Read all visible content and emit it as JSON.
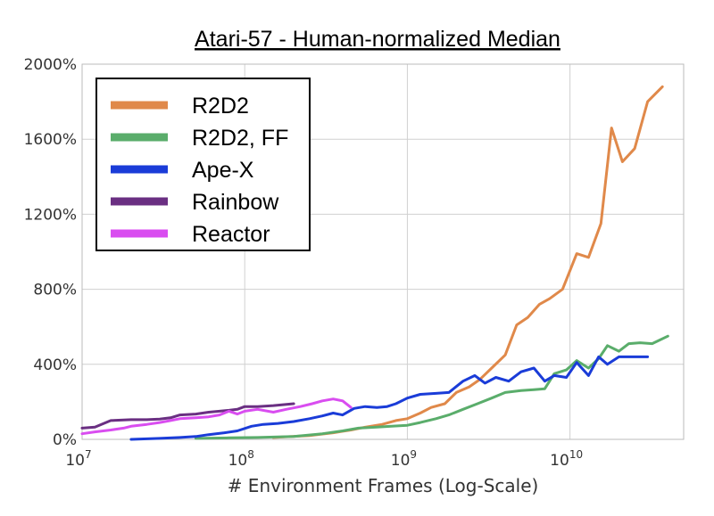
{
  "chart_data": {
    "type": "line",
    "title": "Atari-57 - Human-normalized Median",
    "xlabel": "# Environment Frames (Log-Scale)",
    "ylabel": "",
    "x_scale": "log",
    "xlim": [
      10000000,
      50000000000
    ],
    "ylim": [
      0,
      2000
    ],
    "grid": true,
    "legend_position": "top-left",
    "y_ticks": [
      {
        "value": 0,
        "label": "0%"
      },
      {
        "value": 400,
        "label": "400%"
      },
      {
        "value": 800,
        "label": "800%"
      },
      {
        "value": 1200,
        "label": "1200%"
      },
      {
        "value": 1600,
        "label": "1600%"
      },
      {
        "value": 2000,
        "label": "2000%"
      }
    ],
    "x_ticks": [
      {
        "value": 10000000,
        "base": "10",
        "exp": "7"
      },
      {
        "value": 100000000,
        "base": "10",
        "exp": "8"
      },
      {
        "value": 1000000000,
        "base": "10",
        "exp": "9"
      },
      {
        "value": 10000000000,
        "base": "10",
        "exp": "10"
      }
    ],
    "series": [
      {
        "name": "R2D2",
        "color": "#e0894a",
        "points": [
          [
            150000000,
            10
          ],
          [
            250000000,
            20
          ],
          [
            350000000,
            35
          ],
          [
            450000000,
            50
          ],
          [
            550000000,
            65
          ],
          [
            700000000,
            80
          ],
          [
            850000000,
            100
          ],
          [
            1000000000,
            110
          ],
          [
            1200000000,
            140
          ],
          [
            1400000000,
            170
          ],
          [
            1700000000,
            190
          ],
          [
            2000000000,
            250
          ],
          [
            2400000000,
            280
          ],
          [
            2800000000,
            320
          ],
          [
            3300000000,
            380
          ],
          [
            4000000000,
            450
          ],
          [
            4700000000,
            610
          ],
          [
            5500000000,
            650
          ],
          [
            6500000000,
            720
          ],
          [
            7500000000,
            750
          ],
          [
            9000000000,
            800
          ],
          [
            11000000000,
            990
          ],
          [
            13000000000,
            970
          ],
          [
            15500000000,
            1150
          ],
          [
            18000000000,
            1660
          ],
          [
            21000000000,
            1480
          ],
          [
            25000000000,
            1550
          ],
          [
            30000000000,
            1800
          ],
          [
            37000000000,
            1880
          ]
        ]
      },
      {
        "name": "R2D2, FF",
        "color": "#5aad6b",
        "points": [
          [
            50000000,
            5
          ],
          [
            80000000,
            8
          ],
          [
            120000000,
            10
          ],
          [
            200000000,
            15
          ],
          [
            300000000,
            30
          ],
          [
            400000000,
            45
          ],
          [
            500000000,
            60
          ],
          [
            650000000,
            65
          ],
          [
            800000000,
            70
          ],
          [
            1000000000,
            75
          ],
          [
            1200000000,
            90
          ],
          [
            1500000000,
            110
          ],
          [
            1800000000,
            130
          ],
          [
            2200000000,
            160
          ],
          [
            2700000000,
            190
          ],
          [
            3300000000,
            220
          ],
          [
            4000000000,
            250
          ],
          [
            5000000000,
            260
          ],
          [
            6000000000,
            265
          ],
          [
            7000000000,
            270
          ],
          [
            8000000000,
            350
          ],
          [
            9500000000,
            370
          ],
          [
            11000000000,
            420
          ],
          [
            13000000000,
            380
          ],
          [
            15000000000,
            430
          ],
          [
            17000000000,
            500
          ],
          [
            20000000000,
            470
          ],
          [
            23000000000,
            510
          ],
          [
            27000000000,
            515
          ],
          [
            32000000000,
            510
          ],
          [
            40000000000,
            550
          ]
        ]
      },
      {
        "name": "Ape-X",
        "color": "#1a3cd8",
        "points": [
          [
            20000000,
            0
          ],
          [
            30000000,
            5
          ],
          [
            40000000,
            10
          ],
          [
            50000000,
            15
          ],
          [
            60000000,
            25
          ],
          [
            75000000,
            35
          ],
          [
            90000000,
            45
          ],
          [
            110000000,
            70
          ],
          [
            130000000,
            80
          ],
          [
            160000000,
            85
          ],
          [
            200000000,
            95
          ],
          [
            250000000,
            110
          ],
          [
            300000000,
            125
          ],
          [
            350000000,
            140
          ],
          [
            400000000,
            130
          ],
          [
            470000000,
            165
          ],
          [
            550000000,
            175
          ],
          [
            650000000,
            170
          ],
          [
            750000000,
            175
          ],
          [
            850000000,
            190
          ],
          [
            1000000000,
            220
          ],
          [
            1200000000,
            240
          ],
          [
            1500000000,
            245
          ],
          [
            1800000000,
            250
          ],
          [
            2200000000,
            310
          ],
          [
            2600000000,
            340
          ],
          [
            3000000000,
            300
          ],
          [
            3500000000,
            330
          ],
          [
            4200000000,
            310
          ],
          [
            5000000000,
            360
          ],
          [
            6000000000,
            380
          ],
          [
            7000000000,
            310
          ],
          [
            8000000000,
            340
          ],
          [
            9500000000,
            330
          ],
          [
            11000000000,
            410
          ],
          [
            13000000000,
            340
          ],
          [
            15000000000,
            440
          ],
          [
            17000000000,
            400
          ],
          [
            20000000000,
            440
          ],
          [
            25000000000,
            440
          ],
          [
            30000000000,
            440
          ]
        ]
      },
      {
        "name": "Rainbow",
        "color": "#6a2f82",
        "points": [
          [
            10000000,
            60
          ],
          [
            12000000,
            65
          ],
          [
            15000000,
            100
          ],
          [
            20000000,
            105
          ],
          [
            25000000,
            105
          ],
          [
            30000000,
            108
          ],
          [
            35000000,
            115
          ],
          [
            40000000,
            130
          ],
          [
            50000000,
            135
          ],
          [
            60000000,
            145
          ],
          [
            70000000,
            150
          ],
          [
            80000000,
            155
          ],
          [
            90000000,
            160
          ],
          [
            100000000,
            175
          ],
          [
            120000000,
            175
          ],
          [
            150000000,
            180
          ],
          [
            200000000,
            190
          ]
        ]
      },
      {
        "name": "Reactor",
        "color": "#d94df0",
        "points": [
          [
            10000000,
            30
          ],
          [
            12000000,
            40
          ],
          [
            15000000,
            50
          ],
          [
            18000000,
            60
          ],
          [
            20000000,
            70
          ],
          [
            25000000,
            80
          ],
          [
            30000000,
            90
          ],
          [
            35000000,
            100
          ],
          [
            40000000,
            110
          ],
          [
            50000000,
            115
          ],
          [
            60000000,
            120
          ],
          [
            70000000,
            130
          ],
          [
            80000000,
            150
          ],
          [
            90000000,
            135
          ],
          [
            100000000,
            150
          ],
          [
            120000000,
            160
          ],
          [
            150000000,
            145
          ],
          [
            180000000,
            160
          ],
          [
            220000000,
            175
          ],
          [
            260000000,
            190
          ],
          [
            300000000,
            205
          ],
          [
            350000000,
            215
          ],
          [
            400000000,
            205
          ],
          [
            450000000,
            170
          ]
        ]
      }
    ]
  }
}
